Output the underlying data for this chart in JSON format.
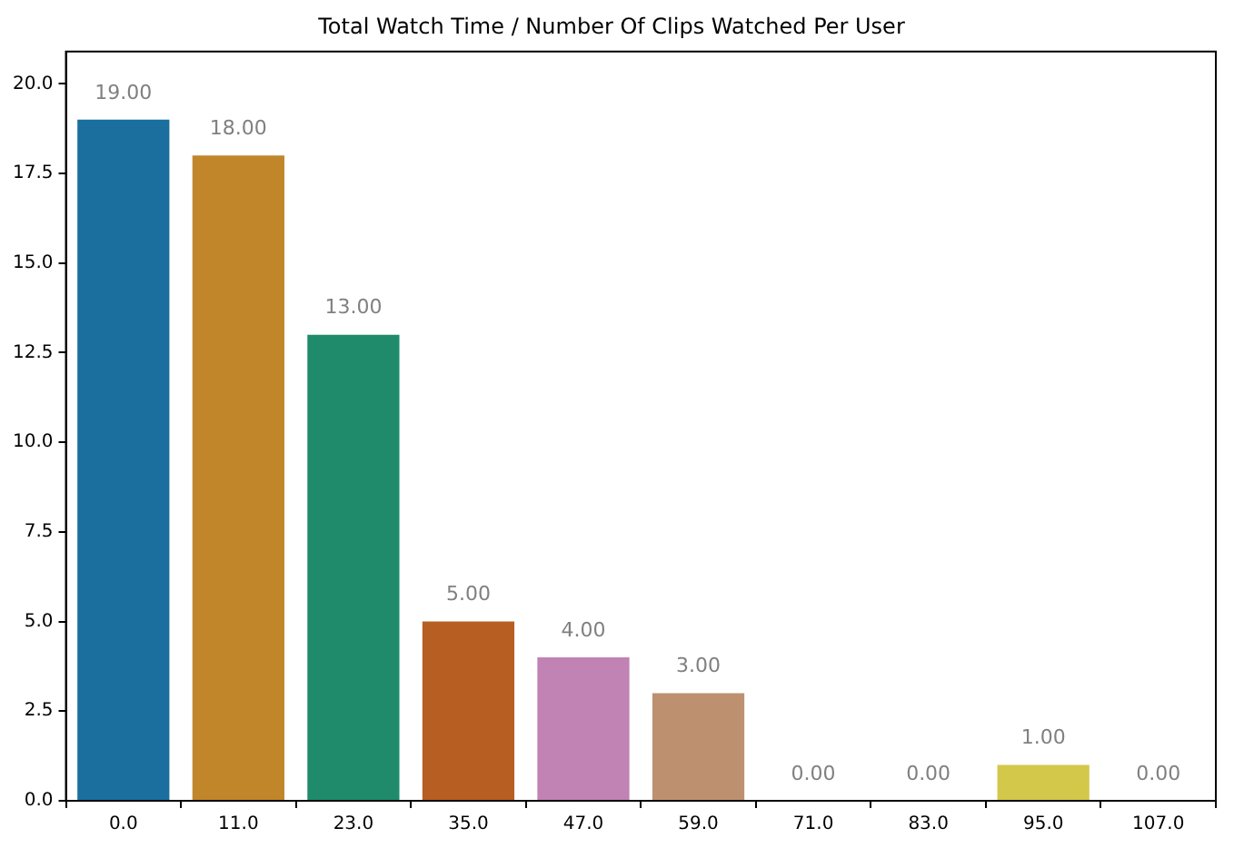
{
  "chart_data": {
    "type": "bar",
    "title": "Total Watch Time / Number Of Clips Watched Per User",
    "categories": [
      "0.0",
      "11.0",
      "23.0",
      "35.0",
      "47.0",
      "59.0",
      "71.0",
      "83.0",
      "95.0",
      "107.0"
    ],
    "values": [
      19,
      18,
      13,
      5,
      4,
      3,
      0,
      0,
      1,
      0
    ],
    "value_labels": [
      "19.00",
      "18.00",
      "13.00",
      "5.00",
      "4.00",
      "3.00",
      "0.00",
      "0.00",
      "1.00",
      "0.00"
    ],
    "colors": [
      "#1a6f9f",
      "#c1862a",
      "#1f8b6a",
      "#b75e22",
      "#c182b4",
      "#bd9170",
      "#d9a6c9",
      "#8f8f8f",
      "#d4c84a",
      "#4ea3cf"
    ],
    "ylim": [
      0,
      20.9
    ],
    "yticks": [
      {
        "value": 0,
        "label": "0.0"
      },
      {
        "value": 2.5,
        "label": "2.5"
      },
      {
        "value": 5,
        "label": "5.0"
      },
      {
        "value": 7.5,
        "label": "7.5"
      },
      {
        "value": 10,
        "label": "10.0"
      },
      {
        "value": 12.5,
        "label": "12.5"
      },
      {
        "value": 15,
        "label": "15.0"
      },
      {
        "value": 17.5,
        "label": "17.5"
      },
      {
        "value": 20,
        "label": "20.0"
      }
    ],
    "grid": false,
    "legend": false
  }
}
